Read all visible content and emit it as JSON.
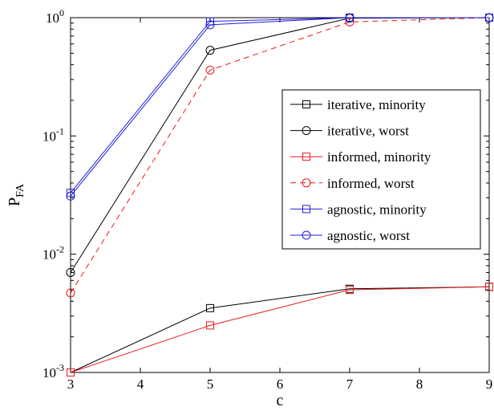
{
  "chart_data": {
    "type": "line",
    "xlabel": "c",
    "ylabel": {
      "main": "P",
      "sub": "FA"
    },
    "xlim": [
      3,
      9
    ],
    "ylim": [
      0.001,
      1
    ],
    "yscale": "log",
    "x_ticks": [
      "3",
      "4",
      "5",
      "6",
      "7",
      "8",
      "9"
    ],
    "y_ticks": [
      {
        "base": "10",
        "exp": "-3",
        "value": 0.001
      },
      {
        "base": "10",
        "exp": "-2",
        "value": 0.01
      },
      {
        "base": "10",
        "exp": "-1",
        "value": 0.1
      },
      {
        "base": "10",
        "exp": "0",
        "value": 1
      }
    ],
    "grid": false,
    "legend_position": "right",
    "series": [
      {
        "name": "iterative, minority",
        "color": "#000000",
        "marker": "square",
        "dash": "solid",
        "x": [
          3,
          5,
          7,
          9
        ],
        "y": [
          0.001,
          0.0035,
          0.0051,
          0.0053
        ]
      },
      {
        "name": "iterative, worst",
        "color": "#000000",
        "marker": "circle",
        "dash": "solid",
        "x": [
          3,
          5,
          7,
          9
        ],
        "y": [
          0.007,
          0.53,
          0.99,
          1.0
        ]
      },
      {
        "name": "informed, minority",
        "color": "#e8191d",
        "marker": "square",
        "dash": "solid",
        "x": [
          3,
          5,
          7,
          9
        ],
        "y": [
          0.001,
          0.0025,
          0.005,
          0.0053
        ]
      },
      {
        "name": "informed, worst",
        "color": "#e8191d",
        "marker": "circle",
        "dash": "dashed",
        "x": [
          3,
          5,
          7,
          9
        ],
        "y": [
          0.0047,
          0.36,
          0.92,
          1.0
        ]
      },
      {
        "name": "agnostic, minority",
        "color": "#1f1fd6",
        "marker": "square",
        "dash": "solid",
        "x": [
          3,
          5,
          7,
          9
        ],
        "y": [
          0.033,
          0.93,
          1.0,
          1.0
        ]
      },
      {
        "name": "agnostic, worst",
        "color": "#1f1fd6",
        "marker": "circle",
        "dash": "solid",
        "x": [
          3,
          5,
          7,
          9
        ],
        "y": [
          0.031,
          0.87,
          1.0,
          1.0
        ]
      }
    ]
  }
}
